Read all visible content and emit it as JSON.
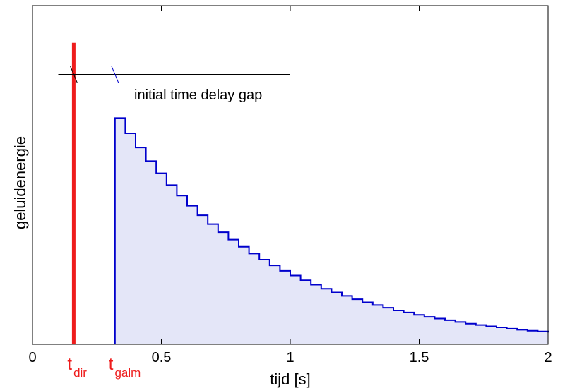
{
  "chart_data": {
    "type": "area",
    "title": "",
    "xlabel": "tijd  [s]",
    "ylabel": "geluidenergie",
    "xlim": [
      0,
      2
    ],
    "ylim": [
      0,
      1
    ],
    "xticks": [
      "0",
      "0.5",
      "1",
      "1.5",
      "2"
    ],
    "yticks": [],
    "grid": false,
    "colors": {
      "direct_sound": "#ee1c1c",
      "decay_line": "#0000cc",
      "decay_fill": "#e4e6f8",
      "annotation_line": "#000000",
      "axes": "#000000"
    },
    "series": [
      {
        "kind": "impulse",
        "x": 0.16,
        "y": 0.89
      },
      {
        "kind": "stepped-decay",
        "x": [
          0.32,
          0.36,
          0.4,
          0.44,
          0.48,
          0.52,
          0.56,
          0.6,
          0.64,
          0.68,
          0.72,
          0.76,
          0.8,
          0.84,
          0.88,
          0.92,
          0.96,
          1.0,
          1.04,
          1.08,
          1.12,
          1.16,
          1.2,
          1.24,
          1.28,
          1.32,
          1.36,
          1.4,
          1.44,
          1.48,
          1.52,
          1.56,
          1.6,
          1.64,
          1.68,
          1.72,
          1.76,
          1.8,
          1.84,
          1.88,
          1.92,
          1.96,
          2.0
        ],
        "y": [
          0.668,
          0.623,
          0.581,
          0.541,
          0.505,
          0.47,
          0.439,
          0.409,
          0.381,
          0.355,
          0.331,
          0.309,
          0.288,
          0.268,
          0.25,
          0.233,
          0.217,
          0.203,
          0.189,
          0.176,
          0.164,
          0.153,
          0.143,
          0.133,
          0.124,
          0.116,
          0.108,
          0.1,
          0.094,
          0.087,
          0.081,
          0.076,
          0.071,
          0.066,
          0.061,
          0.057,
          0.053,
          0.05,
          0.046,
          0.043,
          0.04,
          0.038,
          0.035
        ]
      }
    ],
    "annotations": [
      {
        "text": "initial time delay gap",
        "y": 0.797,
        "line_x": [
          0.1,
          1.0
        ],
        "ticks_x": [
          0.16,
          0.32
        ]
      }
    ],
    "markers": [
      {
        "main": "t",
        "sub": "dir",
        "x": 0.16
      },
      {
        "main": "t",
        "sub": "galm",
        "x": 0.32
      }
    ]
  }
}
